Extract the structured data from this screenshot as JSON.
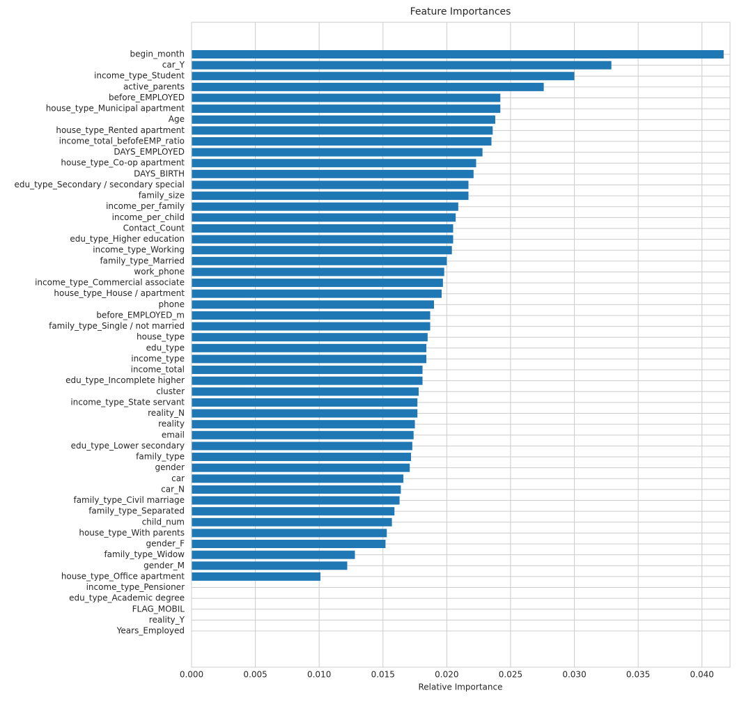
{
  "chart_data": {
    "type": "barh",
    "title": "Feature Importances",
    "x_label": "Relative Importance",
    "categories": [
      "begin_month",
      "car_Y",
      "income_type_Student",
      "active_parents",
      "before_EMPLOYED",
      "house_type_Municipal apartment",
      "Age",
      "house_type_Rented apartment",
      "income_total_befofeEMP_ratio",
      "DAYS_EMPLOYED",
      "house_type_Co-op apartment",
      "DAYS_BIRTH",
      "edu_type_Secondary / secondary special",
      "family_size",
      "income_per_family",
      "income_per_child",
      "Contact_Count",
      "edu_type_Higher education",
      "income_type_Working",
      "family_type_Married",
      "work_phone",
      "income_type_Commercial associate",
      "house_type_House / apartment",
      "phone",
      "before_EMPLOYED_m",
      "family_type_Single / not married",
      "house_type",
      "edu_type",
      "income_type",
      "income_total",
      "edu_type_Incomplete higher",
      "cluster",
      "income_type_State servant",
      "reality_N",
      "reality",
      "email",
      "edu_type_Lower secondary",
      "family_type",
      "gender",
      "car",
      "car_N",
      "family_type_Civil marriage",
      "family_type_Separated",
      "child_num",
      "house_type_With parents",
      "gender_F",
      "family_type_Widow",
      "gender_M",
      "house_type_Office apartment",
      "income_type_Pensioner",
      "edu_type_Academic degree",
      "FLAG_MOBIL",
      "reality_Y",
      "Years_Employed"
    ],
    "values": [
      0.0417,
      0.0329,
      0.03,
      0.0276,
      0.0242,
      0.0242,
      0.0238,
      0.0236,
      0.0235,
      0.0228,
      0.0223,
      0.0221,
      0.0217,
      0.0217,
      0.0209,
      0.0207,
      0.0205,
      0.0205,
      0.0204,
      0.02,
      0.0198,
      0.0197,
      0.0196,
      0.019,
      0.0187,
      0.0187,
      0.0185,
      0.0184,
      0.0184,
      0.0181,
      0.0181,
      0.0178,
      0.0177,
      0.0177,
      0.0175,
      0.0174,
      0.0173,
      0.0172,
      0.0171,
      0.0166,
      0.0164,
      0.0163,
      0.0159,
      0.0157,
      0.0153,
      0.0152,
      0.0128,
      0.0122,
      0.0101,
      0,
      0,
      0,
      0,
      0
    ],
    "color": "#1f77b4",
    "grid": true,
    "xlim": [
      0,
      0.0422
    ],
    "xticks": [
      {
        "value": 0,
        "label": "0.000"
      },
      {
        "value": 0.005,
        "label": "0.005"
      },
      {
        "value": 0.01,
        "label": "0.010"
      },
      {
        "value": 0.015,
        "label": "0.015"
      },
      {
        "value": 0.02,
        "label": "0.020"
      },
      {
        "value": 0.025,
        "label": "0.025"
      },
      {
        "value": 0.03,
        "label": "0.030"
      },
      {
        "value": 0.035,
        "label": "0.035"
      },
      {
        "value": 0.04,
        "label": "0.040"
      }
    ]
  }
}
